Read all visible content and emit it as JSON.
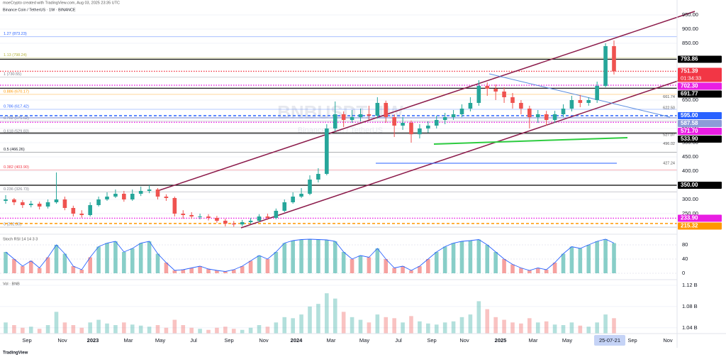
{
  "chart_data": {
    "type": "candlestick",
    "header": "moeCrypto created with TradingView.com, Aug 03, 2025 23:35 UTC",
    "title": "Binance Coin / TetherUS · 1W · BINANCE",
    "watermark": "BNBUSDT, 1W",
    "watermark_subtitle": "Binance Coin / TetherUS",
    "up_color": "#26a69a",
    "down_color": "#ef5350",
    "grid": true,
    "ylim": [
      190,
      972.5
    ],
    "yticks": [
      {
        "value": 950,
        "label": "950.00"
      },
      {
        "value": 900,
        "label": "900.00"
      },
      {
        "value": 850,
        "label": "850.00"
      },
      {
        "value": 650,
        "label": "650.00"
      },
      {
        "value": 550,
        "label": "550.00"
      },
      {
        "value": 500,
        "label": "500.00"
      },
      {
        "value": 450,
        "label": "450.00"
      },
      {
        "value": 400,
        "label": "400.00"
      },
      {
        "value": 300,
        "label": "300.00"
      },
      {
        "value": 250,
        "label": "250.00"
      }
    ],
    "x_labels": [
      "Sep",
      "Nov",
      "2023",
      "Mar",
      "May",
      "Jul",
      "Sep",
      "Nov",
      "2024",
      "Mar",
      "May",
      "Jul",
      "Sep",
      "Nov",
      "2025",
      "Mar",
      "May",
      "25-07-21",
      "Sep",
      "Nov"
    ],
    "open": [
      295,
      300,
      290,
      280,
      285,
      275,
      290,
      300,
      270,
      250,
      245,
      280,
      300,
      310,
      320,
      300,
      320,
      330,
      335,
      310,
      305,
      250,
      245,
      240,
      240,
      235,
      225,
      215,
      212,
      220,
      225,
      240,
      235,
      260,
      290,
      310,
      320,
      370,
      390,
      550,
      600,
      580,
      590,
      600,
      595,
      640,
      590,
      560,
      570,
      530,
      550,
      560,
      580,
      590,
      600,
      620,
      640,
      700,
      690,
      680,
      660,
      640,
      620,
      590,
      600,
      580,
      600,
      620,
      650,
      640,
      650,
      700,
      840
    ],
    "high": [
      315,
      305,
      298,
      295,
      292,
      300,
      395,
      310,
      278,
      262,
      290,
      310,
      325,
      335,
      330,
      335,
      345,
      350,
      340,
      318,
      310,
      262,
      255,
      250,
      248,
      242,
      232,
      224,
      228,
      235,
      248,
      250,
      268,
      300,
      325,
      340,
      385,
      410,
      565,
      645,
      610,
      615,
      620,
      630,
      660,
      648,
      600,
      590,
      578,
      565,
      575,
      595,
      605,
      615,
      635,
      660,
      720,
      712,
      705,
      695,
      675,
      650,
      630,
      615,
      612,
      612,
      635,
      665,
      668,
      660,
      715,
      850,
      860
    ],
    "low": [
      285,
      280,
      270,
      272,
      265,
      268,
      285,
      262,
      240,
      236,
      240,
      275,
      295,
      305,
      292,
      295,
      312,
      322,
      300,
      295,
      240,
      232,
      232,
      230,
      226,
      218,
      205,
      204,
      206,
      214,
      220,
      228,
      230,
      255,
      285,
      305,
      315,
      360,
      385,
      540,
      555,
      570,
      575,
      580,
      585,
      570,
      520,
      545,
      500,
      515,
      535,
      550,
      565,
      580,
      590,
      610,
      630,
      665,
      650,
      640,
      620,
      600,
      550,
      570,
      560,
      570,
      590,
      610,
      625,
      630,
      640,
      695,
      740
    ],
    "close": [
      300,
      290,
      280,
      285,
      275,
      290,
      300,
      270,
      250,
      245,
      280,
      300,
      310,
      320,
      300,
      320,
      330,
      335,
      310,
      305,
      250,
      245,
      240,
      240,
      235,
      225,
      215,
      212,
      220,
      225,
      240,
      235,
      260,
      290,
      310,
      320,
      370,
      390,
      550,
      600,
      580,
      590,
      600,
      595,
      640,
      590,
      560,
      570,
      530,
      550,
      560,
      580,
      590,
      600,
      620,
      640,
      700,
      690,
      680,
      660,
      640,
      620,
      590,
      600,
      580,
      600,
      620,
      650,
      640,
      650,
      700,
      840,
      751.39
    ],
    "countdown": "01:34:33",
    "levels": [
      {
        "value": 793.86,
        "label": "793.86",
        "color": "#000000",
        "style": "solid"
      },
      {
        "value": 751.39,
        "label": "751.39",
        "color": "#f23645",
        "style": "dotted"
      },
      {
        "value": 702.3,
        "label": "702.30",
        "color": "#e91ee3",
        "style": "dotted"
      },
      {
        "value": 691.77,
        "label": "691.77",
        "color": "#000000",
        "style": "solid"
      },
      {
        "value": 595,
        "label": "595.00",
        "color": "#2962ff",
        "style": "dashed"
      },
      {
        "value": 587.58,
        "label": "587.58",
        "color": "#8c9bd8",
        "style": "solid"
      },
      {
        "value": 571.7,
        "label": "571.70",
        "color": "#e91ee3",
        "style": "dotted"
      },
      {
        "value": 533.9,
        "label": "533.90",
        "color": "#000000",
        "style": "solid"
      },
      {
        "value": 350,
        "label": "350.00",
        "color": "#000000",
        "style": "solid"
      },
      {
        "value": 233.9,
        "label": "233.90",
        "color": "#e91ee3",
        "style": "dotted"
      },
      {
        "value": 215.32,
        "label": "215.32",
        "color": "#ff9800",
        "style": "dashed"
      }
    ],
    "line_labels": [
      {
        "value": 661.74,
        "label": "661.74"
      },
      {
        "value": 622.5,
        "label": "622.50"
      },
      {
        "value": 527.07,
        "label": "527.07"
      },
      {
        "value": 496.02,
        "label": "496.02"
      },
      {
        "value": 427.24,
        "label": "427.24"
      }
    ],
    "fib": [
      {
        "value": 873.23,
        "label": "1.27 (873.23)",
        "color": "#2962ff"
      },
      {
        "value": 798.24,
        "label": "1.13 (798.24)",
        "color": "#b5b33c"
      },
      {
        "value": 730.55,
        "label": "1 (730.55)",
        "color": "#787b86"
      },
      {
        "value": 670.17,
        "label": "0.886 (670.17)",
        "color": "#ff9800"
      },
      {
        "value": 617.42,
        "label": "0.786 (617.42)",
        "color": "#2962ff"
      },
      {
        "value": 575.62,
        "label": "0.702 (575.62)",
        "color": "#787b86"
      },
      {
        "value": 529.83,
        "label": "0.618 (529.83)",
        "color": "#787b86"
      },
      {
        "value": 466.26,
        "label": "0.5 (466.26)",
        "color": "#131722"
      },
      {
        "value": 403.9,
        "label": "0.382 (403.90)",
        "color": "#f23645"
      },
      {
        "value": 326.73,
        "label": "0.236 (326.73)",
        "color": "#787b86"
      },
      {
        "value": 202.3,
        "label": "0 (202.30)",
        "color": "#787b86"
      }
    ],
    "oscillator": {
      "label": "Stoch RSI 14 14 3 3",
      "ylim": [
        -14,
        96
      ],
      "yticks": [
        80,
        40,
        0
      ],
      "values": [
        60,
        40,
        20,
        35,
        15,
        45,
        80,
        55,
        20,
        10,
        45,
        75,
        85,
        90,
        60,
        70,
        85,
        90,
        55,
        30,
        8,
        10,
        15,
        20,
        12,
        8,
        5,
        10,
        20,
        35,
        50,
        40,
        60,
        85,
        92,
        95,
        96,
        95,
        94,
        90,
        60,
        40,
        50,
        45,
        70,
        40,
        15,
        20,
        8,
        20,
        40,
        60,
        75,
        85,
        90,
        92,
        95,
        80,
        60,
        40,
        25,
        15,
        8,
        15,
        10,
        30,
        55,
        75,
        70,
        80,
        90,
        96,
        85
      ]
    },
    "volume": {
      "label": "Vol · BNB",
      "ylim": [
        1.029,
        1.128
      ],
      "yticks": [
        {
          "value": 1.12,
          "label": "1.12 B"
        },
        {
          "value": 1.08,
          "label": "1.08 B"
        },
        {
          "value": 1.04,
          "label": "1.04 B"
        }
      ],
      "values": [
        1.05,
        1.045,
        1.04,
        1.042,
        1.038,
        1.045,
        1.07,
        1.05,
        1.045,
        1.04,
        1.05,
        1.055,
        1.048,
        1.045,
        1.05,
        1.046,
        1.044,
        1.042,
        1.045,
        1.04,
        1.055,
        1.045,
        1.04,
        1.038,
        1.036,
        1.04,
        1.042,
        1.038,
        1.036,
        1.04,
        1.045,
        1.042,
        1.05,
        1.06,
        1.058,
        1.065,
        1.08,
        1.085,
        1.105,
        1.095,
        1.07,
        1.06,
        1.055,
        1.05,
        1.065,
        1.06,
        1.058,
        1.05,
        1.062,
        1.052,
        1.048,
        1.046,
        1.05,
        1.052,
        1.06,
        1.065,
        1.09,
        1.075,
        1.06,
        1.055,
        1.05,
        1.048,
        1.058,
        1.05,
        1.052,
        1.046,
        1.045,
        1.05,
        1.044,
        1.042,
        1.05,
        1.065,
        1.058
      ]
    }
  }
}
